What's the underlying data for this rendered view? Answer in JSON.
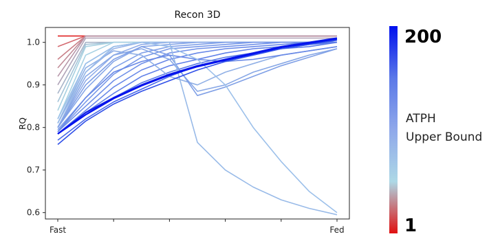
{
  "chart_data": {
    "type": "line",
    "title": "Recon 3D",
    "xlabel": "",
    "ylabel": "RQ",
    "x_tick_labels": [
      "Fast",
      "",
      "",
      "",
      "",
      "Fed"
    ],
    "x": [
      0,
      0.1,
      0.2,
      0.3,
      0.4,
      0.5,
      0.6,
      0.7,
      0.8,
      0.9,
      1.0
    ],
    "ylim": [
      0.585,
      1.035
    ],
    "yticks": [
      0.6,
      0.7,
      0.8,
      0.9,
      1.0
    ],
    "grid": false,
    "colorbar": {
      "label_lines": [
        "ATPH",
        "Upper Bound"
      ],
      "min_label": "1",
      "max_label": "200",
      "colors": [
        "#e01010",
        "#add8e6",
        "#8fa8ea",
        "#5a78e8",
        "#0010ee"
      ]
    },
    "series": [
      {
        "color": "#e02020",
        "values": [
          1.015,
          1.015,
          1.015,
          1.015,
          1.015,
          1.015,
          1.015,
          1.015,
          1.015,
          1.015,
          1.015
        ]
      },
      {
        "color": "#d46a70",
        "values": [
          0.99,
          1.015,
          1.015,
          1.015,
          1.015,
          1.015,
          1.015,
          1.015,
          1.015,
          1.015,
          1.015
        ]
      },
      {
        "color": "#c98088",
        "values": [
          0.96,
          1.015,
          1.015,
          1.015,
          1.015,
          1.015,
          1.015,
          1.015,
          1.015,
          1.015,
          1.015
        ]
      },
      {
        "color": "#c08c98",
        "values": [
          0.94,
          1.015,
          1.015,
          1.015,
          1.015,
          1.015,
          1.015,
          1.015,
          1.015,
          1.015,
          1.015
        ]
      },
      {
        "color": "#b898aa",
        "values": [
          0.92,
          1.015,
          1.015,
          1.015,
          1.015,
          1.015,
          1.015,
          1.015,
          1.015,
          1.015,
          1.015
        ]
      },
      {
        "color": "#b0a4b8",
        "values": [
          0.9,
          1.01,
          1.01,
          1.01,
          1.01,
          1.01,
          1.01,
          1.01,
          1.01,
          1.01,
          1.01
        ]
      },
      {
        "color": "#a8b4c8",
        "values": [
          0.88,
          1.0,
          1.0,
          1.0,
          1.0,
          1.0,
          1.0,
          1.0,
          1.0,
          1.0,
          1.0
        ]
      },
      {
        "color": "#a4c4d8",
        "values": [
          0.86,
          0.995,
          1.0,
          1.0,
          1.0,
          1.0,
          1.0,
          1.0,
          1.0,
          1.0,
          1.0
        ]
      },
      {
        "color": "#a6d0e0",
        "values": [
          0.84,
          0.99,
          1.0,
          1.0,
          1.0,
          1.0,
          1.0,
          1.0,
          1.0,
          1.0,
          1.0
        ]
      },
      {
        "color": "#a8d2e4",
        "values": [
          0.82,
          0.97,
          1.0,
          1.0,
          1.0,
          1.0,
          1.0,
          1.0,
          1.0,
          1.0,
          1.0
        ]
      },
      {
        "color": "#a0c0e6",
        "values": [
          0.81,
          0.95,
          0.99,
          1.0,
          1.0,
          1.0,
          1.0,
          1.0,
          1.0,
          1.0,
          1.0
        ]
      },
      {
        "color": "#98b4e8",
        "values": [
          0.8,
          0.93,
          0.985,
          1.0,
          1.0,
          1.0,
          1.0,
          1.0,
          1.0,
          1.0,
          1.0
        ]
      },
      {
        "color": "#90ace8",
        "values": [
          0.8,
          0.91,
          0.97,
          0.995,
          1.0,
          1.0,
          1.0,
          1.0,
          1.0,
          1.0,
          1.0
        ]
      },
      {
        "color": "#88a8e8",
        "values": [
          0.8,
          0.89,
          0.955,
          0.99,
          0.995,
          1.0,
          1.0,
          1.0,
          1.0,
          1.0,
          1.0
        ]
      },
      {
        "color": "#80a0e8",
        "values": [
          0.795,
          0.87,
          0.94,
          0.975,
          0.99,
          0.995,
          1.0,
          1.0,
          1.0,
          1.0,
          1.0
        ]
      },
      {
        "color": "#7898e8",
        "values": [
          0.79,
          0.86,
          0.925,
          0.965,
          0.985,
          0.99,
          0.995,
          1.0,
          1.0,
          1.0,
          1.0
        ]
      },
      {
        "color": "#7090e8",
        "values": [
          0.79,
          0.85,
          0.91,
          0.95,
          0.975,
          0.985,
          0.99,
          0.995,
          1.0,
          1.0,
          1.0
        ]
      },
      {
        "color": "#6888e8",
        "values": [
          0.785,
          0.84,
          0.895,
          0.935,
          0.96,
          0.975,
          0.985,
          0.99,
          0.995,
          1.0,
          1.0
        ]
      },
      {
        "color": "#6080e8",
        "values": [
          0.785,
          0.835,
          0.88,
          0.92,
          0.945,
          0.96,
          0.975,
          0.985,
          0.99,
          0.995,
          1.0
        ]
      },
      {
        "color": "#5878e8",
        "values": [
          0.785,
          0.83,
          0.87,
          0.905,
          0.93,
          0.95,
          0.965,
          0.975,
          0.985,
          0.99,
          1.0
        ]
      },
      {
        "color": "#90b0e6",
        "values": [
          0.81,
          0.94,
          0.98,
          0.97,
          0.92,
          0.9,
          0.93,
          0.95,
          0.97,
          0.98,
          0.99
        ]
      },
      {
        "color": "#88a8e6",
        "values": [
          0.8,
          0.92,
          0.97,
          0.985,
          0.96,
          0.885,
          0.9,
          0.93,
          0.95,
          0.97,
          0.985
        ]
      },
      {
        "color": "#80a0e6",
        "values": [
          0.8,
          0.9,
          0.96,
          0.99,
          0.97,
          0.875,
          0.895,
          0.92,
          0.945,
          0.965,
          0.985
        ]
      },
      {
        "color": "#6888e6",
        "values": [
          0.79,
          0.87,
          0.93,
          0.955,
          0.97,
          0.96,
          0.955,
          0.96,
          0.97,
          0.98,
          0.99
        ]
      },
      {
        "color": "#98bae8",
        "values": [
          0.81,
          0.93,
          0.99,
          1.0,
          1.0,
          0.765,
          0.7,
          0.66,
          0.63,
          0.61,
          0.595
        ]
      },
      {
        "color": "#9cc0ea",
        "values": [
          0.82,
          0.95,
          0.99,
          1.0,
          0.99,
          0.96,
          0.9,
          0.8,
          0.72,
          0.65,
          0.6
        ]
      },
      {
        "color": "#4868e8",
        "values": [
          0.77,
          0.82,
          0.86,
          0.89,
          0.92,
          0.945,
          0.96,
          0.975,
          0.985,
          0.995,
          1.005
        ]
      },
      {
        "color": "#3050e8",
        "values": [
          0.76,
          0.815,
          0.855,
          0.885,
          0.91,
          0.935,
          0.955,
          0.97,
          0.985,
          0.995,
          1.005
        ]
      },
      {
        "color": "#1020e8",
        "values": [
          0.785,
          0.835,
          0.87,
          0.9,
          0.925,
          0.945,
          0.96,
          0.975,
          0.99,
          1.0,
          1.01
        ]
      },
      {
        "color": "#0010ee",
        "values": [
          0.785,
          0.83,
          0.868,
          0.898,
          0.923,
          0.943,
          0.958,
          0.973,
          0.988,
          0.998,
          1.008
        ]
      }
    ]
  }
}
